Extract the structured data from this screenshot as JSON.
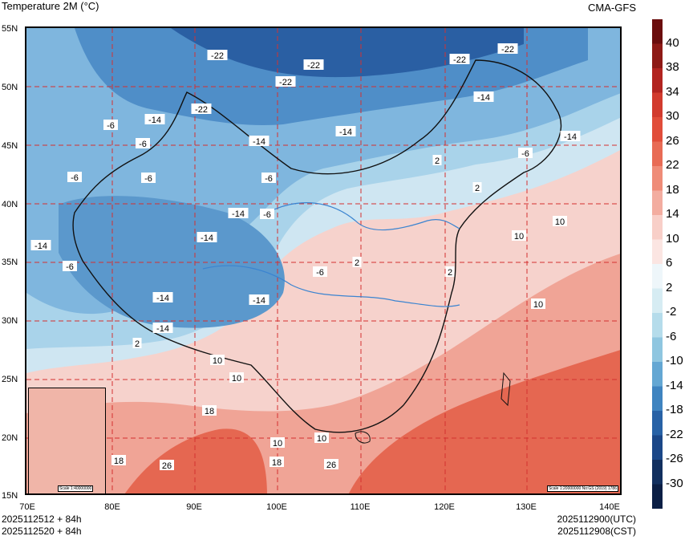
{
  "header": {
    "title": "Temperature  2M (°C)",
    "model": "CMA-GFS"
  },
  "axes": {
    "lat_labels": [
      "55N",
      "50N",
      "45N",
      "40N",
      "35N",
      "30N",
      "25N",
      "20N",
      "15N"
    ],
    "lon_labels": [
      "70E",
      "80E",
      "90E",
      "100E",
      "110E",
      "120E",
      "130E",
      "140E"
    ]
  },
  "map": {
    "contour_labels": [
      {
        "text": "-22"
      },
      {
        "text": "-22"
      },
      {
        "text": "-22"
      },
      {
        "text": "-22"
      },
      {
        "text": "-22"
      },
      {
        "text": "-22"
      },
      {
        "text": "-14"
      },
      {
        "text": "-14"
      },
      {
        "text": "-14"
      },
      {
        "text": "-14"
      },
      {
        "text": "-14"
      },
      {
        "text": "-14"
      },
      {
        "text": "-14"
      },
      {
        "text": "-14"
      },
      {
        "text": "-14"
      },
      {
        "text": "-14"
      },
      {
        "text": "-14"
      },
      {
        "text": "-6"
      },
      {
        "text": "-6"
      },
      {
        "text": "-6"
      },
      {
        "text": "-6"
      },
      {
        "text": "-6"
      },
      {
        "text": "-6"
      },
      {
        "text": "-6"
      },
      {
        "text": "-6"
      },
      {
        "text": "-6"
      },
      {
        "text": "2"
      },
      {
        "text": "2"
      },
      {
        "text": "2"
      },
      {
        "text": "2"
      },
      {
        "text": "2"
      },
      {
        "text": "10"
      },
      {
        "text": "10"
      },
      {
        "text": "10"
      },
      {
        "text": "10"
      },
      {
        "text": "10"
      },
      {
        "text": "10"
      },
      {
        "text": "10"
      },
      {
        "text": "18"
      },
      {
        "text": "18"
      },
      {
        "text": "18"
      },
      {
        "text": "26"
      },
      {
        "text": "26"
      }
    ],
    "inset_scale": "Scale 1:40000000",
    "map_note": "Scale 1:20000000 No:GS (2019) 1786"
  },
  "colorbar": {
    "ticks": [
      "40",
      "38",
      "34",
      "30",
      "26",
      "22",
      "18",
      "14",
      "10",
      "6",
      "2",
      "-2",
      "-6",
      "-10",
      "-14",
      "-18",
      "-22",
      "-26",
      "-30"
    ],
    "colors": [
      "#6b0d0d",
      "#8e1a16",
      "#b22420",
      "#d23b2e",
      "#e14d3a",
      "#e86b55",
      "#ef8c78",
      "#f3ada0",
      "#f8cfc8",
      "#fbe5e2",
      "#eef6fa",
      "#d6ecf3",
      "#b5dceb",
      "#8fc6e0",
      "#64a7d3",
      "#3f84c0",
      "#2862a6",
      "#1b4788",
      "#12305f",
      "#0b1f45"
    ]
  },
  "footer": {
    "left_line1": "2025112512 + 84h",
    "left_line2": "2025112520 + 84h",
    "right_line1": "2025112900(UTC)",
    "right_line2": "2025112908(CST)"
  }
}
